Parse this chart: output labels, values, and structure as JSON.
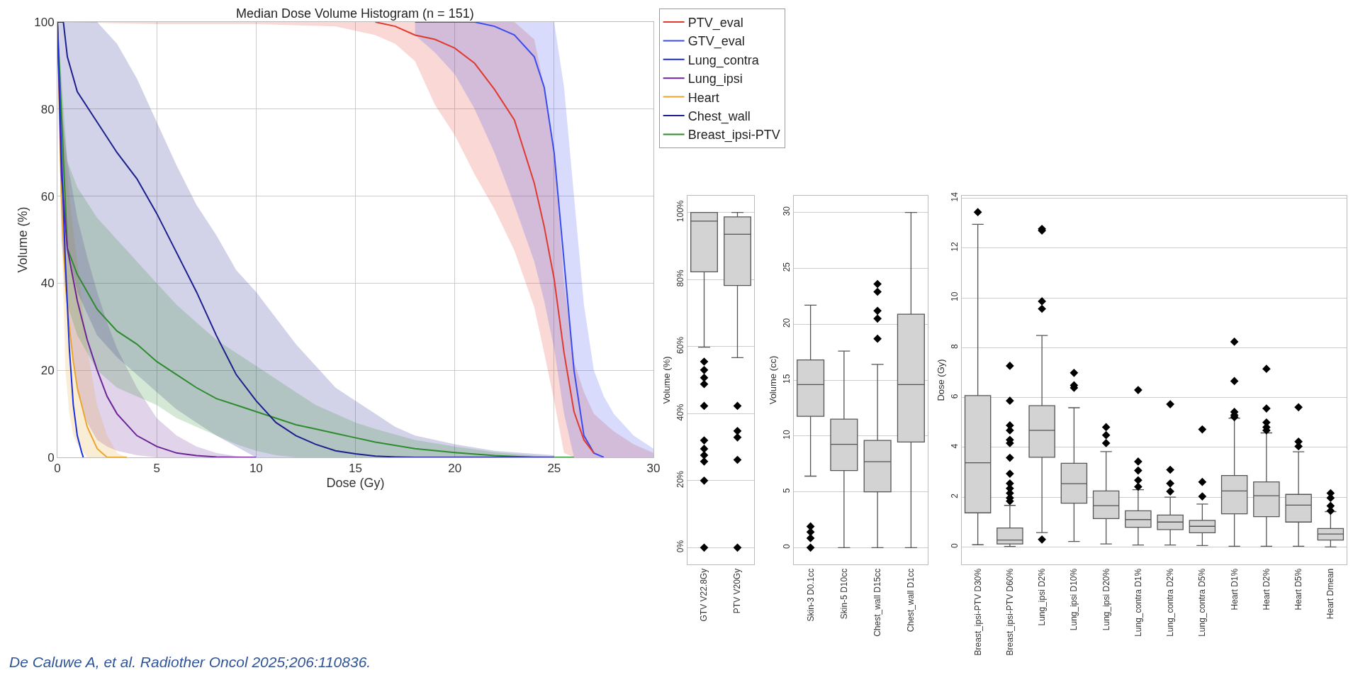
{
  "chart_data": [
    {
      "type": "line",
      "title": "Median Dose Volume Histogram (n = 151)",
      "xlabel": "Dose (Gy)",
      "ylabel": "Volume (%)",
      "xlim": [
        0,
        30
      ],
      "ylim": [
        0,
        100
      ],
      "xticks": [
        0,
        5,
        10,
        15,
        20,
        25,
        30
      ],
      "yticks": [
        0,
        20,
        40,
        60,
        80,
        100
      ],
      "grid": true,
      "legend": "top right",
      "annotations": [
        "De Caluwe A, et al. Radiother Oncol 2025;206:110836."
      ],
      "series": [
        {
          "name": "PTV_eval",
          "color": "#e03a2e",
          "x": [
            0,
            5,
            10,
            14,
            16,
            17,
            18,
            19,
            20,
            21,
            22,
            23,
            24,
            24.5,
            25,
            25.5,
            26,
            26.5,
            27,
            27.5,
            28,
            29,
            30
          ],
          "values": [
            null,
            null,
            null,
            null,
            100,
            99,
            97,
            96,
            94,
            90.5,
            84.5,
            77.5,
            63,
            53,
            41,
            24,
            10.5,
            4,
            1,
            null,
            null,
            null,
            null
          ],
          "lower": [
            100,
            99.5,
            99.5,
            99,
            97,
            95,
            91,
            81,
            74,
            65,
            57,
            47.5,
            34.5,
            24,
            13,
            1,
            0,
            0,
            0,
            0,
            0,
            0,
            0
          ],
          "upper": [
            100,
            100,
            100,
            100,
            100,
            100,
            100,
            100,
            100,
            100,
            100,
            100,
            96,
            85,
            70,
            40,
            22,
            15,
            10,
            8,
            6,
            3,
            1
          ]
        },
        {
          "name": "GTV_eval",
          "color": "#3a4cf0",
          "x": [
            18,
            19,
            20,
            21,
            22,
            23,
            24,
            24.5,
            25,
            25.5,
            26,
            26.5,
            27,
            27.5,
            28,
            29,
            30
          ],
          "values": [
            100,
            100,
            100,
            100,
            99,
            97,
            92,
            85,
            70,
            45,
            20,
            5,
            1,
            0,
            null,
            null,
            null
          ],
          "lower": [
            97,
            93,
            88,
            80,
            70,
            58,
            45,
            36,
            25,
            10,
            0,
            0,
            0,
            0,
            0,
            0,
            0
          ],
          "upper": [
            100,
            100,
            100,
            100,
            100,
            100,
            100,
            100,
            100,
            85,
            60,
            35,
            20,
            14,
            10,
            5,
            2
          ]
        },
        {
          "name": "Lung_contra",
          "color": "#1a2ee0",
          "x": [
            0,
            0.2,
            0.4,
            0.6,
            0.8,
            1,
            1.2,
            1.3
          ],
          "values": [
            100,
            70,
            45,
            25,
            12,
            5,
            1.5,
            0
          ]
        },
        {
          "name": "Lung_ipsi",
          "color": "#6a2496",
          "x": [
            0,
            0.2,
            0.5,
            1,
            1.5,
            2,
            2.5,
            3,
            4,
            5,
            6,
            7,
            8,
            9,
            10
          ],
          "values": [
            100,
            65,
            48,
            36,
            27,
            20,
            14,
            10,
            5,
            2.5,
            1,
            0.4,
            0.1,
            0,
            0
          ],
          "lower": [
            100,
            50,
            35,
            15,
            8,
            4,
            2.5,
            1.5,
            0.5,
            0,
            0,
            0,
            0,
            0,
            0
          ],
          "upper": [
            100,
            80,
            68,
            55,
            46,
            38,
            31,
            25,
            16,
            9,
            5,
            2.5,
            1,
            0.3,
            0
          ]
        },
        {
          "name": "Heart",
          "color": "#e8a630",
          "x": [
            0,
            0.2,
            0.4,
            0.6,
            0.8,
            1,
            1.5,
            2,
            2.5,
            3,
            3.5
          ],
          "values": [
            100,
            60,
            40,
            30,
            22,
            16,
            7,
            2,
            0,
            0,
            0
          ],
          "lower": [
            100,
            55,
            20,
            10,
            5,
            3,
            0,
            0,
            0,
            0,
            0
          ],
          "upper": [
            100,
            85,
            70,
            60,
            52,
            45,
            25,
            12,
            5,
            1,
            0
          ]
        },
        {
          "name": "Chest_wall",
          "color": "#1c1f8c",
          "x": [
            0,
            0.3,
            0.5,
            1,
            2,
            3,
            4,
            5,
            6,
            7,
            8,
            9,
            10,
            11,
            12,
            13,
            14,
            15,
            16,
            17,
            18,
            20,
            22,
            25
          ],
          "values": [
            100,
            100,
            92,
            84,
            77,
            70,
            64,
            56,
            47,
            38,
            28,
            19,
            13,
            8,
            5,
            3,
            1.5,
            0.8,
            0.3,
            0.1,
            0,
            0,
            0,
            0
          ],
          "lower": [
            100,
            60,
            48,
            38,
            28,
            23,
            19,
            15,
            11,
            8,
            5,
            2.5,
            0,
            0,
            0,
            0,
            0,
            0,
            0,
            0,
            0,
            0,
            0,
            0
          ],
          "upper": [
            100,
            100,
            100,
            100,
            100,
            95,
            87,
            77,
            67,
            58,
            51,
            43,
            38,
            32,
            26,
            21,
            16,
            13,
            10,
            7,
            5,
            3,
            1.5,
            0.5
          ]
        },
        {
          "name": "Breast_ipsi-PTV",
          "color": "#2e8b2e",
          "x": [
            0,
            0.5,
            1,
            2,
            3,
            4,
            5,
            6,
            7,
            8,
            9,
            10,
            11,
            12,
            13,
            14,
            15,
            16,
            18,
            20,
            22,
            24,
            26
          ],
          "values": [
            100,
            48,
            42,
            34,
            29,
            26,
            22,
            19,
            16,
            13.5,
            12,
            10.5,
            9,
            7.5,
            6.5,
            5.5,
            4.5,
            3.5,
            2,
            1.1,
            0.4,
            0,
            0
          ],
          "lower": [
            100,
            35,
            28,
            20,
            16,
            14,
            12,
            9,
            7,
            5,
            3,
            1.5,
            0.5,
            0,
            0,
            0,
            0,
            0,
            0,
            0,
            0,
            0,
            0
          ],
          "upper": [
            100,
            68,
            62,
            55,
            50,
            45,
            40,
            35,
            31,
            27,
            24,
            21,
            18,
            15,
            12,
            10,
            8,
            6.5,
            4,
            2.5,
            1.2,
            0.4,
            0
          ]
        }
      ]
    },
    {
      "type": "box",
      "ylabel": "Volume (%)",
      "categories": [
        "GTV V22.8Gy",
        "PTV V20Gy"
      ],
      "ylim": [
        -5,
        105
      ],
      "yticks": [
        {
          "value": 0,
          "label": "0%"
        },
        {
          "value": 20,
          "label": "20%"
        },
        {
          "value": 40,
          "label": "40%"
        },
        {
          "value": 60,
          "label": "60%"
        },
        {
          "value": 80,
          "label": "80%"
        },
        {
          "value": 100,
          "label": "100%"
        }
      ],
      "grid": "y",
      "color": "#d3d3d3",
      "marker": "diamond",
      "boxes": [
        {
          "low": 59.8,
          "q1": 82.3,
          "median": 97.4,
          "q3": 100,
          "high": 100,
          "outliers": [
            55.5,
            53,
            50.7,
            48.8,
            42.3,
            32,
            29.5,
            27.6,
            25.7,
            20,
            0
          ]
        },
        {
          "low": 56.7,
          "q1": 78.2,
          "median": 93.5,
          "q3": 98.7,
          "high": 100,
          "outliers": [
            42.3,
            34.8,
            32.9,
            26.2,
            0
          ]
        }
      ]
    },
    {
      "type": "box",
      "ylabel": "Volume (cc)",
      "categories": [
        "Skin-3 D0.1cc",
        "Skin-5 D10cc",
        "Chest_wall D15cc",
        "Chest_wall D1cc"
      ],
      "ylim": [
        -1.5,
        31.5
      ],
      "yticks": [
        0,
        5,
        10,
        15,
        20,
        25,
        30
      ],
      "grid": "y",
      "color": "#d3d3d3",
      "marker": "diamond",
      "boxes": [
        {
          "low": 6.4,
          "q1": 11.75,
          "median": 14.6,
          "q3": 16.8,
          "high": 21.7,
          "outliers": [
            1.9,
            1.4,
            0.85,
            0
          ]
        },
        {
          "low": 0,
          "q1": 6.9,
          "median": 9.25,
          "q3": 11.5,
          "high": 17.6
        },
        {
          "low": 0,
          "q1": 5.0,
          "median": 7.7,
          "q3": 9.6,
          "high": 16.4,
          "outliers": [
            23.6,
            22.9,
            21.2,
            20.5,
            18.7
          ]
        },
        {
          "low": 0,
          "q1": 9.45,
          "median": 14.6,
          "q3": 20.9,
          "high": 30
        }
      ]
    },
    {
      "type": "box",
      "ylabel": "Dose (Gy)",
      "categories": [
        "Breast_ipsi-PTV D30%",
        "Breast_ipsi-PTV D60%",
        "Lung_ipsi D2%",
        "Lung_ipsi D10%",
        "Lung_ipsi D20%",
        "Lung_contra D1%",
        "Lung_contra D2%",
        "Lung_contra D5%",
        "Heart D1%",
        "Heart D2%",
        "Heart D5%",
        "Heart Dmean"
      ],
      "ylim": [
        -0.7,
        14.1
      ],
      "yticks": [
        0,
        2,
        4,
        6,
        8,
        10,
        12,
        14
      ],
      "grid": "y",
      "color": "#d3d3d3",
      "marker": "diamond",
      "boxes": [
        {
          "low": 0.09,
          "q1": 1.37,
          "median": 3.38,
          "q3": 6.08,
          "high": 12.95,
          "outliers": [
            13.44
          ]
        },
        {
          "low": 0.02,
          "q1": 0.12,
          "median": 0.28,
          "q3": 0.76,
          "high": 1.67,
          "outliers": [
            7.27,
            5.87,
            4.88,
            4.68,
            4.3,
            4.17,
            3.58,
            2.94,
            2.55,
            2.35,
            2.16,
            1.97,
            1.84
          ]
        },
        {
          "low": 0.58,
          "q1": 3.6,
          "median": 4.68,
          "q3": 5.67,
          "high": 8.49,
          "outliers": [
            12.77,
            12.7,
            9.86,
            9.56,
            0.3
          ]
        },
        {
          "low": 0.22,
          "q1": 1.76,
          "median": 2.54,
          "q3": 3.36,
          "high": 5.59,
          "outliers": [
            6.99,
            6.49,
            6.39
          ]
        },
        {
          "low": 0.12,
          "q1": 1.14,
          "median": 1.66,
          "q3": 2.25,
          "high": 3.83,
          "outliers": [
            4.81,
            4.49,
            4.17
          ]
        },
        {
          "low": 0.08,
          "q1": 0.79,
          "median": 1.1,
          "q3": 1.45,
          "high": 2.3,
          "outliers": [
            6.3,
            3.43,
            3.07,
            2.68,
            2.42
          ]
        },
        {
          "low": 0.08,
          "q1": 0.7,
          "median": 1.0,
          "q3": 1.28,
          "high": 2.0,
          "outliers": [
            5.73,
            3.1,
            2.55,
            2.23
          ]
        },
        {
          "low": 0.06,
          "q1": 0.57,
          "median": 0.83,
          "q3": 1.07,
          "high": 1.72,
          "outliers": [
            4.72,
            2.61,
            2.03
          ]
        },
        {
          "low": 0.03,
          "q1": 1.33,
          "median": 2.25,
          "q3": 2.87,
          "high": 5.17,
          "outliers": [
            8.24,
            6.66,
            5.42,
            5.29,
            5.21
          ]
        },
        {
          "low": 0.03,
          "q1": 1.22,
          "median": 2.06,
          "q3": 2.61,
          "high": 4.58,
          "outliers": [
            7.15,
            5.56,
            5.0,
            4.81,
            4.68
          ]
        },
        {
          "low": 0.03,
          "q1": 1.0,
          "median": 1.68,
          "q3": 2.11,
          "high": 3.82,
          "outliers": [
            5.61,
            4.23,
            4.04
          ]
        },
        {
          "low": 0.0,
          "q1": 0.28,
          "median": 0.52,
          "q3": 0.74,
          "high": 1.42,
          "outliers": [
            2.16,
            1.97,
            1.65,
            1.45
          ]
        }
      ]
    }
  ]
}
